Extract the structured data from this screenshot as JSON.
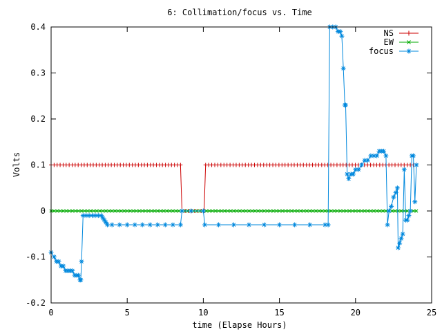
{
  "chart_data": {
    "type": "line",
    "title": "6: Collimation/focus vs. Time",
    "xlabel": "time (Elapse Hours)",
    "ylabel": "Volts",
    "xlim": [
      0,
      25
    ],
    "ylim": [
      -0.2,
      0.4
    ],
    "x_ticks": [
      0,
      5,
      10,
      15,
      20,
      25
    ],
    "y_ticks": [
      -0.2,
      -0.1,
      0,
      0.1,
      0.2,
      0.3,
      0.4
    ],
    "x_tick_labels": [
      "0",
      "5",
      "10",
      "15",
      "20",
      "25"
    ],
    "y_tick_labels": [
      "-0.2",
      "-0.1",
      "0",
      "0.1",
      "0.2",
      "0.3",
      "0.4"
    ],
    "grid": false,
    "legend_position": "top-right",
    "series": [
      {
        "name": "NS",
        "color": "#cc0000",
        "marker": "plus",
        "points": [
          [
            0.0,
            0.1
          ],
          [
            8.5,
            0.1
          ],
          [
            8.6,
            0.0
          ],
          [
            10.05,
            0.0
          ],
          [
            10.15,
            0.1
          ],
          [
            24.0,
            0.1
          ]
        ]
      },
      {
        "name": "EW",
        "color": "#00aa00",
        "marker": "cross",
        "points": [
          [
            0.0,
            0.0
          ],
          [
            24.0,
            0.0
          ]
        ]
      },
      {
        "name": "focus",
        "color": "#0088dd",
        "marker": "star",
        "points": [
          [
            0.0,
            -0.09
          ],
          [
            0.2,
            -0.1
          ],
          [
            0.35,
            -0.11
          ],
          [
            0.5,
            -0.11
          ],
          [
            0.65,
            -0.12
          ],
          [
            0.8,
            -0.12
          ],
          [
            0.95,
            -0.13
          ],
          [
            1.1,
            -0.13
          ],
          [
            1.25,
            -0.13
          ],
          [
            1.4,
            -0.13
          ],
          [
            1.55,
            -0.14
          ],
          [
            1.7,
            -0.14
          ],
          [
            1.8,
            -0.14
          ],
          [
            1.9,
            -0.15
          ],
          [
            1.95,
            -0.15
          ],
          [
            2.0,
            -0.11
          ],
          [
            2.1,
            -0.01
          ],
          [
            2.3,
            -0.01
          ],
          [
            2.5,
            -0.01
          ],
          [
            2.7,
            -0.01
          ],
          [
            2.9,
            -0.01
          ],
          [
            3.1,
            -0.01
          ],
          [
            3.3,
            -0.01
          ],
          [
            3.4,
            -0.015
          ],
          [
            3.5,
            -0.02
          ],
          [
            3.6,
            -0.025
          ],
          [
            3.7,
            -0.03
          ],
          [
            4.0,
            -0.03
          ],
          [
            4.5,
            -0.03
          ],
          [
            5.0,
            -0.03
          ],
          [
            5.5,
            -0.03
          ],
          [
            6.0,
            -0.03
          ],
          [
            6.5,
            -0.03
          ],
          [
            7.0,
            -0.03
          ],
          [
            7.5,
            -0.03
          ],
          [
            8.0,
            -0.03
          ],
          [
            8.5,
            -0.03
          ],
          [
            8.6,
            0.0
          ],
          [
            9.2,
            0.0
          ],
          [
            10.0,
            0.0
          ],
          [
            10.1,
            -0.03
          ],
          [
            11.0,
            -0.03
          ],
          [
            12.0,
            -0.03
          ],
          [
            13.0,
            -0.03
          ],
          [
            14.0,
            -0.03
          ],
          [
            15.0,
            -0.03
          ],
          [
            16.0,
            -0.03
          ],
          [
            17.0,
            -0.03
          ],
          [
            18.0,
            -0.03
          ],
          [
            18.2,
            -0.03
          ],
          [
            18.3,
            0.4
          ],
          [
            18.5,
            0.4
          ],
          [
            18.7,
            0.4
          ],
          [
            18.85,
            0.39
          ],
          [
            19.0,
            0.39
          ],
          [
            19.1,
            0.38
          ],
          [
            19.2,
            0.31
          ],
          [
            19.3,
            0.23
          ],
          [
            19.35,
            0.23
          ],
          [
            19.45,
            0.08
          ],
          [
            19.55,
            0.07
          ],
          [
            19.7,
            0.08
          ],
          [
            19.85,
            0.08
          ],
          [
            20.0,
            0.09
          ],
          [
            20.2,
            0.09
          ],
          [
            20.4,
            0.1
          ],
          [
            20.6,
            0.11
          ],
          [
            20.8,
            0.11
          ],
          [
            21.0,
            0.12
          ],
          [
            21.2,
            0.12
          ],
          [
            21.4,
            0.12
          ],
          [
            21.55,
            0.13
          ],
          [
            21.7,
            0.13
          ],
          [
            21.85,
            0.13
          ],
          [
            22.0,
            0.12
          ],
          [
            22.1,
            -0.03
          ],
          [
            22.2,
            0.0
          ],
          [
            22.35,
            0.01
          ],
          [
            22.5,
            0.03
          ],
          [
            22.65,
            0.04
          ],
          [
            22.75,
            0.05
          ],
          [
            22.8,
            -0.08
          ],
          [
            22.9,
            -0.07
          ],
          [
            23.0,
            -0.06
          ],
          [
            23.1,
            -0.05
          ],
          [
            23.2,
            0.09
          ],
          [
            23.3,
            -0.02
          ],
          [
            23.4,
            -0.02
          ],
          [
            23.5,
            -0.01
          ],
          [
            23.6,
            0.0
          ],
          [
            23.7,
            0.12
          ],
          [
            23.8,
            0.12
          ],
          [
            23.9,
            0.02
          ],
          [
            24.0,
            0.1
          ]
        ]
      }
    ]
  }
}
